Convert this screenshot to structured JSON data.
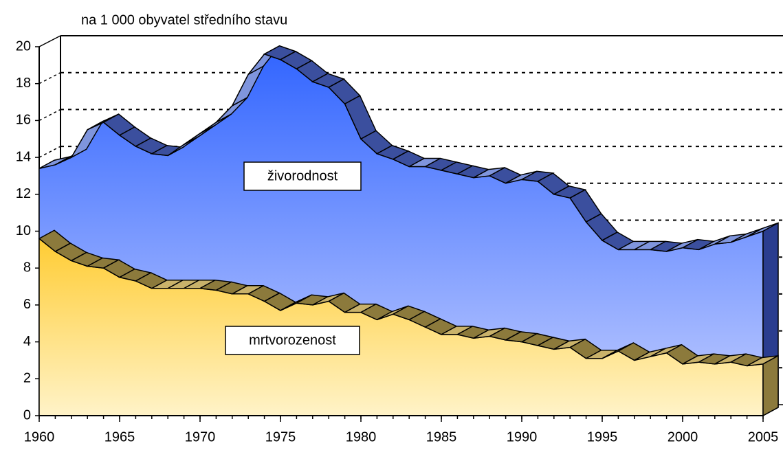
{
  "chart_data": {
    "type": "area3d",
    "subtitle": "na 1 000 obyvatel středního stavu",
    "x": [
      1960,
      1961,
      1962,
      1963,
      1964,
      1965,
      1966,
      1967,
      1968,
      1969,
      1970,
      1971,
      1972,
      1973,
      1974,
      1975,
      1976,
      1977,
      1978,
      1979,
      1980,
      1981,
      1982,
      1983,
      1984,
      1985,
      1986,
      1987,
      1988,
      1989,
      1990,
      1991,
      1992,
      1993,
      1994,
      1995,
      1996,
      1997,
      1998,
      1999,
      2000,
      2001,
      2002,
      2003,
      2004,
      2005
    ],
    "series": [
      {
        "name": "živorodnost",
        "color": "#3366ff",
        "values": [
          13.4,
          13.6,
          14.0,
          15.5,
          15.9,
          15.2,
          14.6,
          14.2,
          14.1,
          14.7,
          15.3,
          15.9,
          16.8,
          18.5,
          19.6,
          19.3,
          18.8,
          18.1,
          17.8,
          16.9,
          15.0,
          14.2,
          13.9,
          13.5,
          13.5,
          13.3,
          13.1,
          12.9,
          13.0,
          12.6,
          12.8,
          12.7,
          12.0,
          11.8,
          10.5,
          9.5,
          9.0,
          9.0,
          9.0,
          8.9,
          9.1,
          9.0,
          9.3,
          9.4,
          9.7,
          10.0
        ]
      },
      {
        "name": "mrtvorozenost",
        "color": "#ffcc33",
        "values": [
          9.6,
          8.9,
          8.4,
          8.1,
          8.0,
          7.5,
          7.3,
          6.9,
          6.9,
          6.9,
          6.9,
          6.8,
          6.6,
          6.6,
          6.2,
          5.7,
          6.1,
          6.0,
          6.2,
          5.6,
          5.6,
          5.2,
          5.5,
          5.2,
          4.8,
          4.4,
          4.4,
          4.2,
          4.3,
          4.1,
          4.0,
          3.8,
          3.6,
          3.7,
          3.1,
          3.1,
          3.5,
          3.0,
          3.2,
          3.4,
          2.8,
          2.9,
          2.8,
          2.9,
          2.7,
          2.8
        ]
      }
    ],
    "xlim": [
      1960,
      2005
    ],
    "xticks": [
      1960,
      1965,
      1970,
      1975,
      1980,
      1985,
      1990,
      1995,
      2000,
      2005
    ],
    "ylim": [
      0,
      20
    ],
    "yticks": [
      0,
      2,
      4,
      6,
      8,
      10,
      12,
      14,
      16,
      18,
      20
    ],
    "grid": true
  }
}
